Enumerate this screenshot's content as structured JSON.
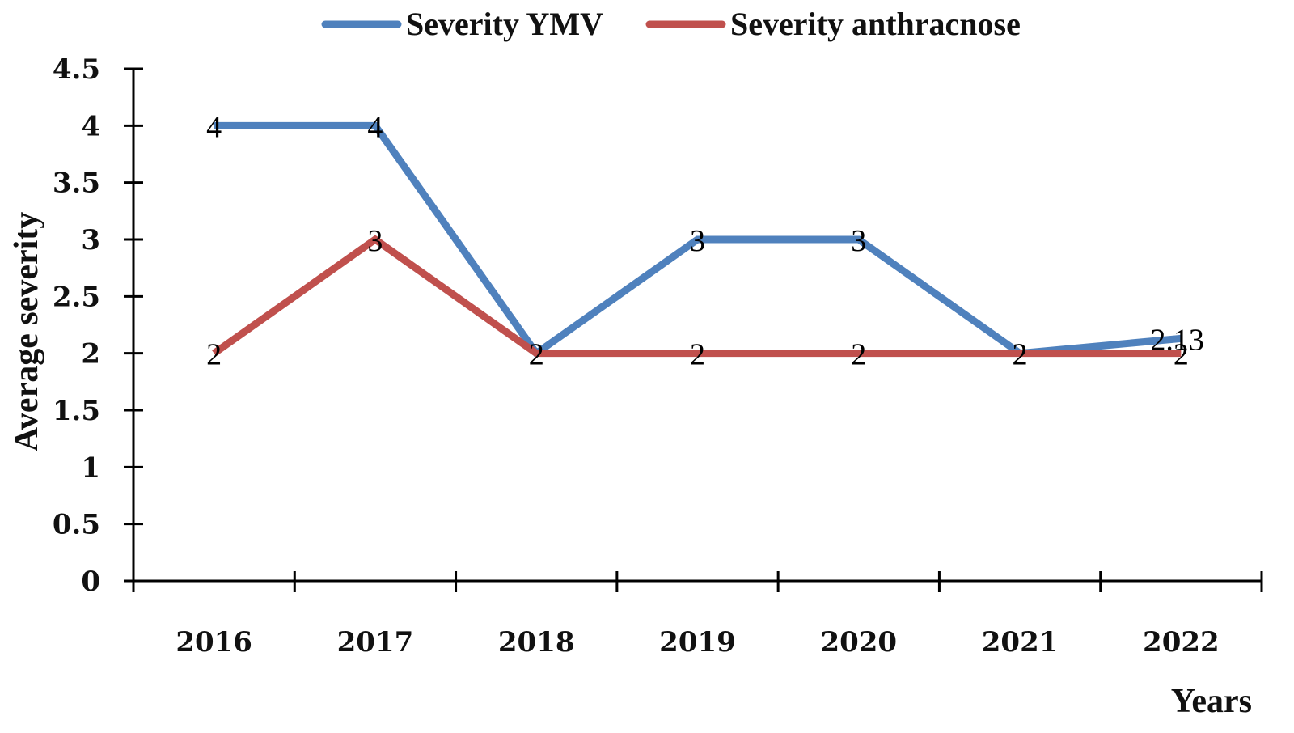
{
  "chart_data": {
    "type": "line",
    "title": "",
    "xlabel": "Years",
    "ylabel": "Average severity",
    "categories": [
      "2016",
      "2017",
      "2018",
      "2019",
      "2020",
      "2021",
      "2022"
    ],
    "ylim": [
      0,
      4.5
    ],
    "yticks": [
      "0",
      "0.5",
      "1",
      "1.5",
      "2",
      "2.5",
      "3",
      "3.5",
      "4",
      "4.5"
    ],
    "grid": false,
    "legend_position": "top-center",
    "series": [
      {
        "name": "Severity YMV",
        "color": "#4f81bd",
        "values": [
          4,
          4,
          2,
          3,
          3,
          2,
          2.13
        ],
        "labels": [
          "4",
          "4",
          "2",
          "3",
          "3",
          "2",
          "2.13"
        ]
      },
      {
        "name": "Severity anthracnose",
        "color": "#c0504d",
        "values": [
          2,
          3,
          2,
          2,
          2,
          2,
          2
        ],
        "labels": [
          "2",
          "3",
          "2",
          "2",
          "2",
          "2",
          "2"
        ]
      }
    ]
  }
}
